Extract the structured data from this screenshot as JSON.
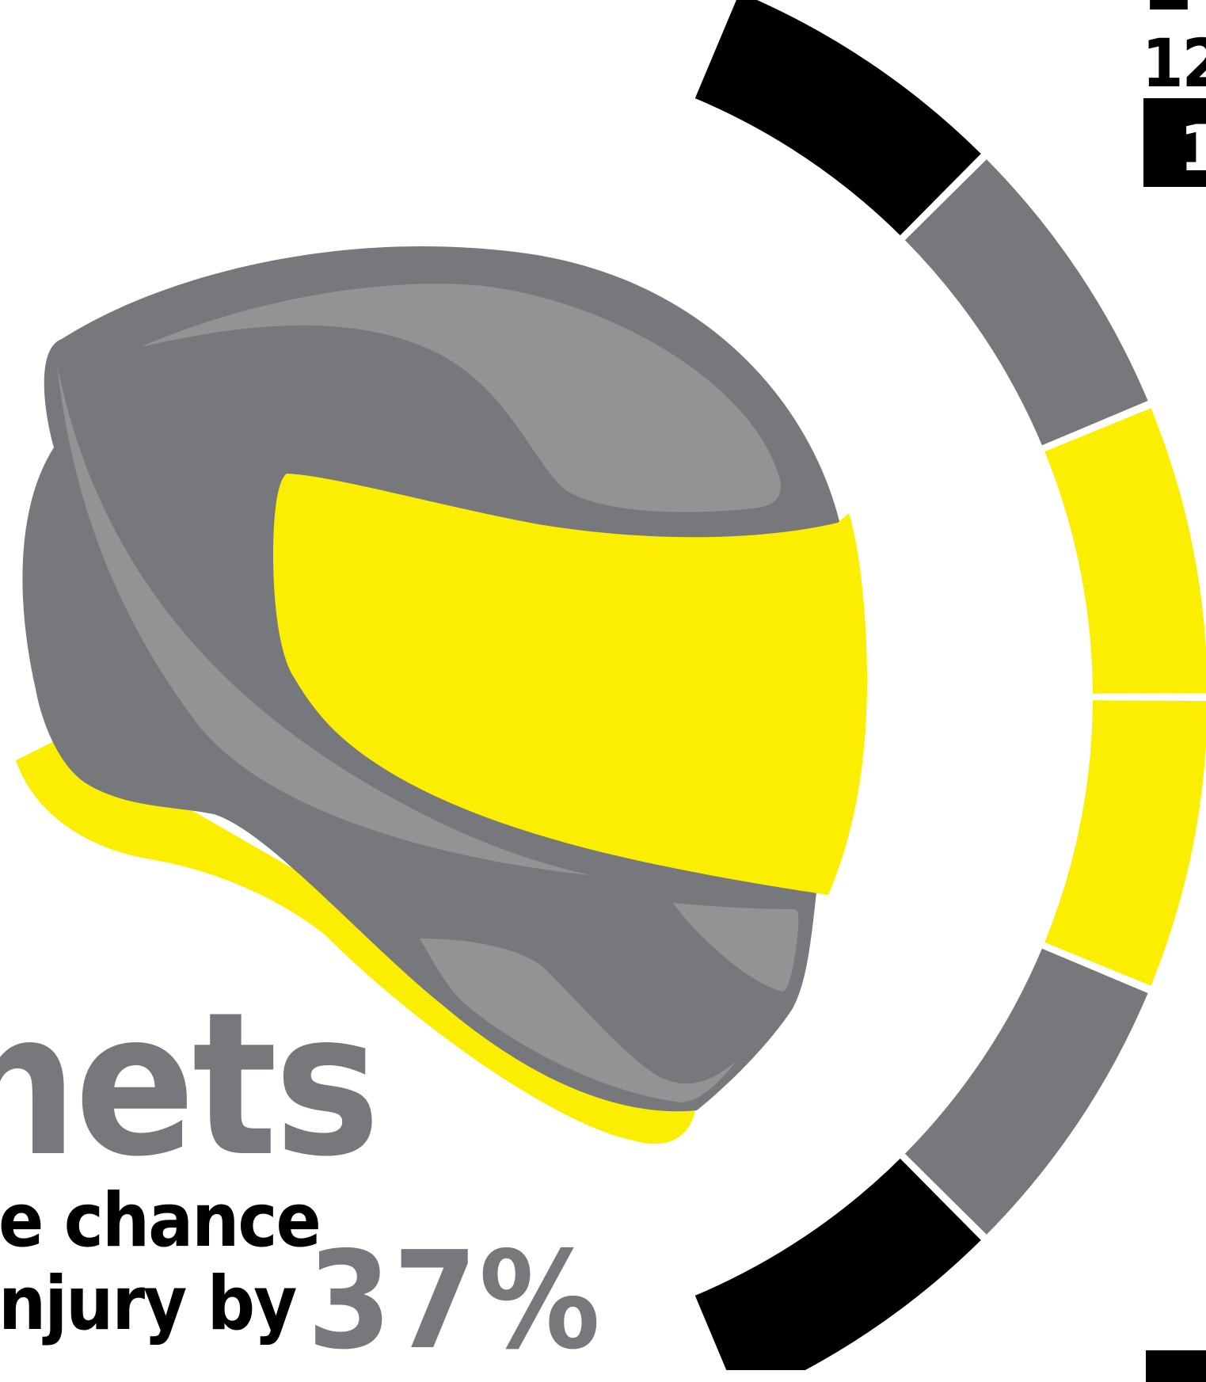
{
  "colors": {
    "yellow": "#fcee00",
    "gray": "#77787b",
    "light_gray": "#929395",
    "black": "#000000",
    "white": "#ffffff"
  },
  "headline": "nets",
  "subtext": {
    "line1": "e chance",
    "line2": "njury by",
    "percent": "37%"
  },
  "corner": {
    "big": "2",
    "number": "12",
    "box_text": "1"
  },
  "ring_segments": [
    {
      "color": "black"
    },
    {
      "color": "gray"
    },
    {
      "color": "yellow"
    },
    {
      "color": "yellow"
    },
    {
      "color": "gray"
    },
    {
      "color": "black"
    }
  ],
  "icons": [
    "helmet-icon"
  ]
}
